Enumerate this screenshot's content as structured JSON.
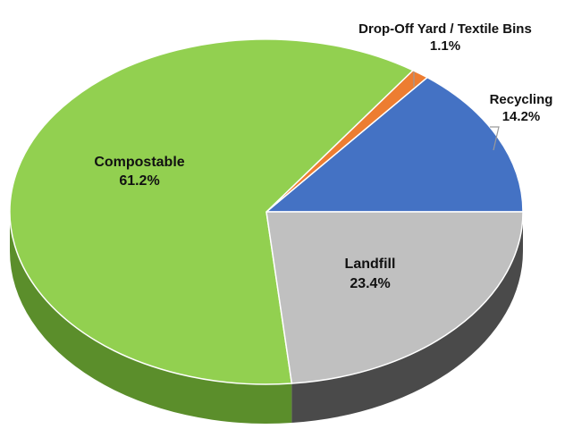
{
  "chart_data": {
    "type": "pie",
    "title": "",
    "style": "3d",
    "start_at": "3 o'clock, counterclockwise",
    "slices": [
      {
        "name": "Recycling",
        "value": 14.2,
        "label": "14.2%",
        "color": "#4472c4",
        "side_color": "#2f528f"
      },
      {
        "name": "Drop-Off Yard / Textile Bins",
        "value": 1.1,
        "label": "1.1%",
        "color": "#ed7d31",
        "side_color": "#b45a1f"
      },
      {
        "name": "Compostable",
        "value": 61.2,
        "label": "61.2%",
        "color": "#92d050",
        "side_color": "#5b8e2b"
      },
      {
        "name": "Landfill",
        "value": 23.4,
        "label": "23.4%",
        "color": "#c0c0c0",
        "side_color": "#4a4a4a"
      }
    ]
  }
}
